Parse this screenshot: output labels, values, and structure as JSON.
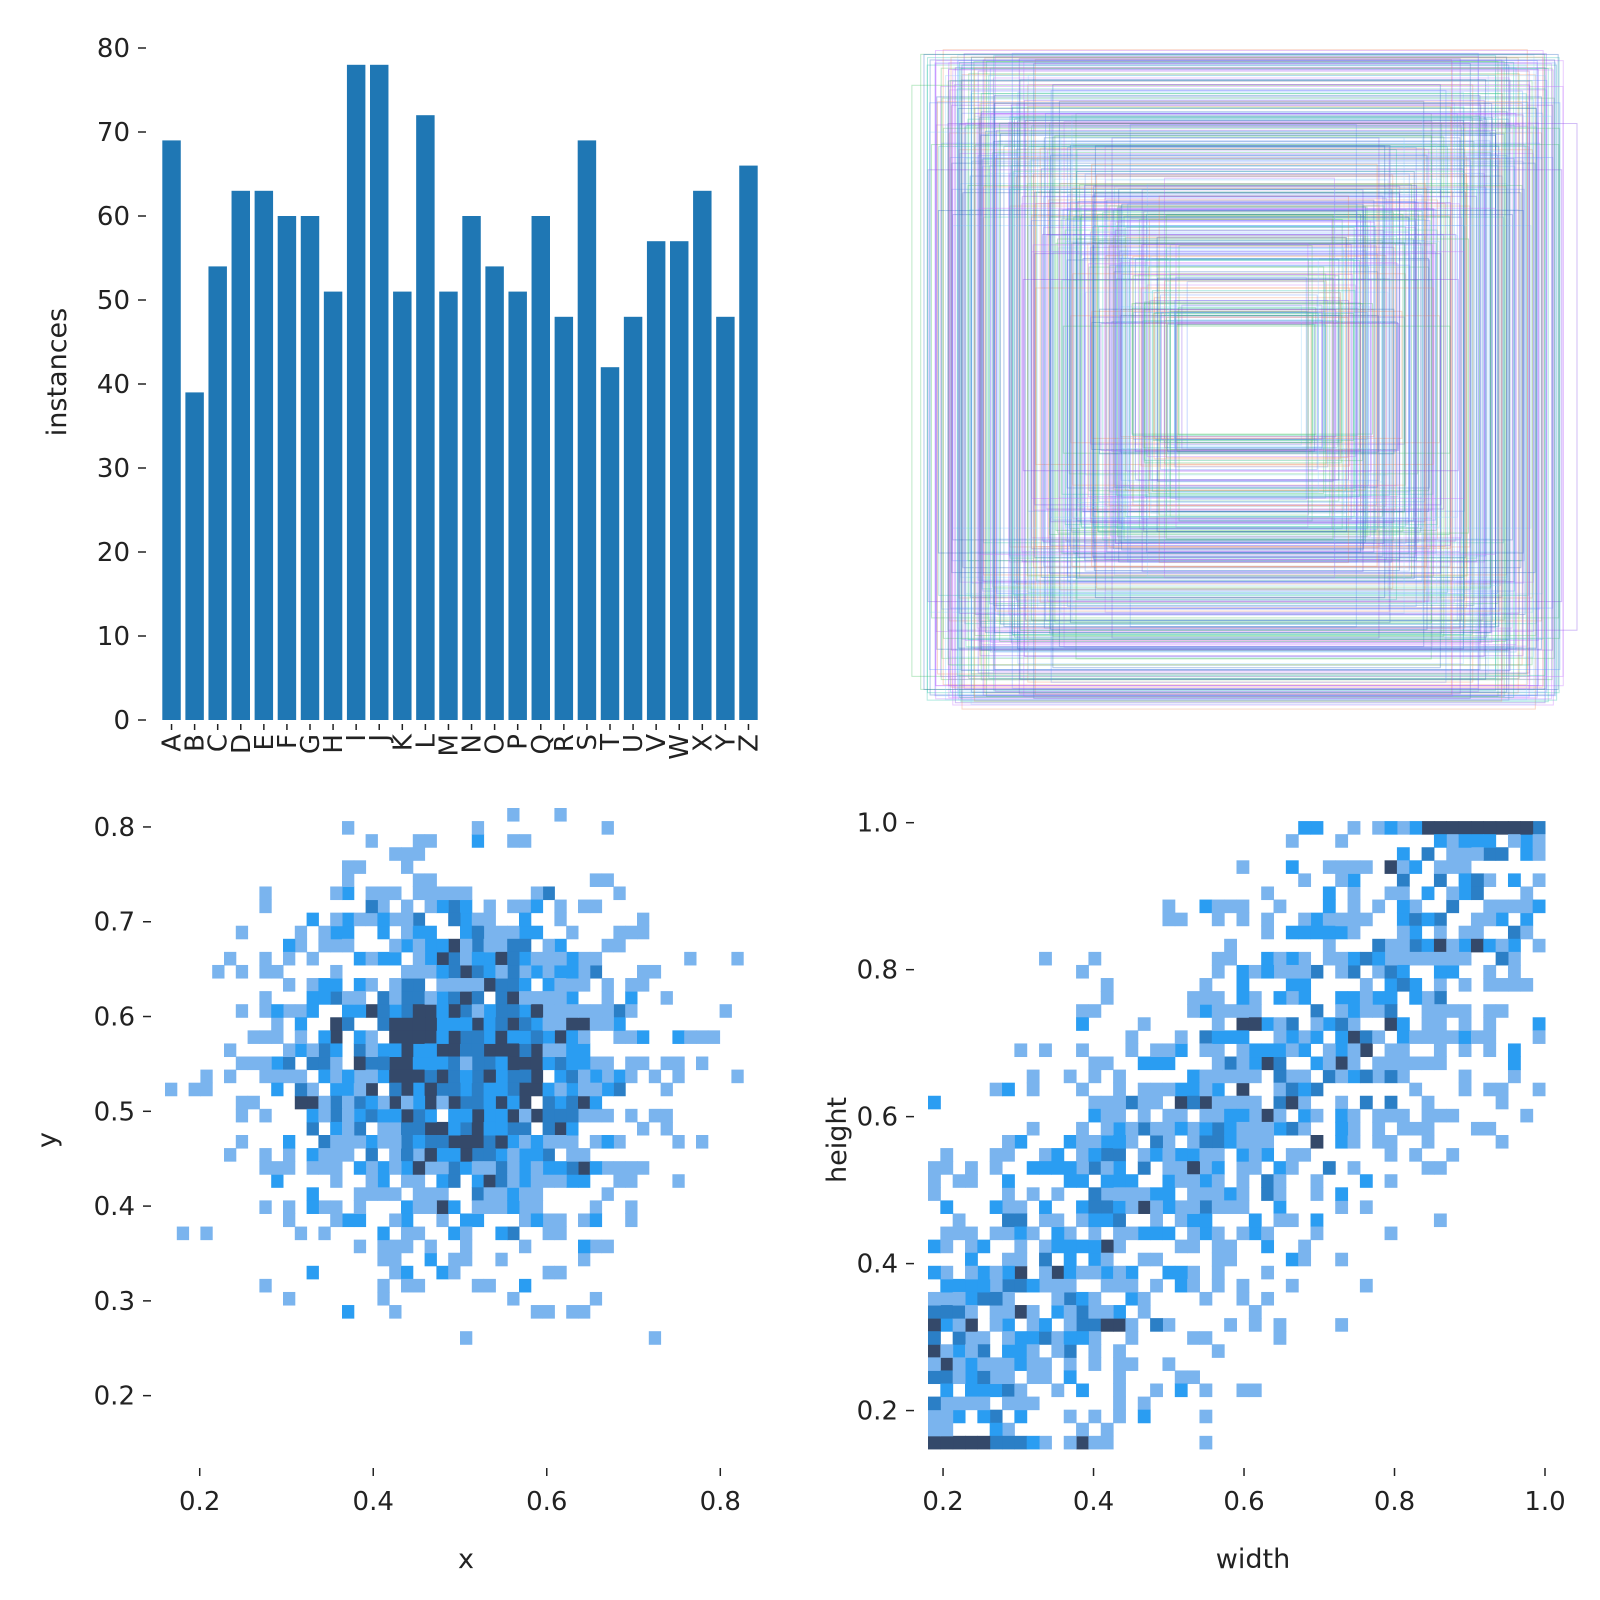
{
  "colors": {
    "bar": "#1f77b4",
    "hist_light": "#7ab4ee",
    "hist_mid": "#2a9df2",
    "hist_dark": "#2b7fc6",
    "hist_darkest": "#34496a",
    "tick": "#222222"
  },
  "chart_data": [
    {
      "id": "class-counts",
      "type": "bar",
      "categories": [
        "A",
        "B",
        "C",
        "D",
        "E",
        "F",
        "G",
        "H",
        "I",
        "J",
        "K",
        "L",
        "M",
        "N",
        "O",
        "P",
        "Q",
        "R",
        "S",
        "T",
        "U",
        "V",
        "W",
        "X",
        "Y",
        "Z"
      ],
      "values": [
        69,
        39,
        54,
        63,
        63,
        60,
        60,
        51,
        78,
        78,
        51,
        72,
        51,
        60,
        54,
        51,
        60,
        48,
        69,
        42,
        48,
        57,
        57,
        63,
        48,
        66
      ],
      "ylabel": "instances",
      "xlabel": "",
      "ylim": [
        0,
        80
      ],
      "yticks": [
        0,
        10,
        20,
        30,
        40,
        50,
        60,
        70,
        80
      ],
      "grid": false
    },
    {
      "id": "box-overlay",
      "type": "other",
      "description_colors": [
        "#5b8cff",
        "#29c4a9",
        "#7b3fe4",
        "#f08a5d",
        "#8fd3ff",
        "#3fbf5f",
        "#c06bff",
        "#1f5fbf"
      ],
      "rects_count": 400,
      "grid": false
    },
    {
      "id": "xy-hist",
      "type": "heatmap",
      "xlabel": "x",
      "ylabel": "y",
      "xlim": [
        0.16,
        0.84
      ],
      "ylim": [
        0.13,
        0.82
      ],
      "xticks": [
        "0.2",
        "0.4",
        "0.6",
        "0.8"
      ],
      "yticks": [
        "0.2",
        "0.3",
        "0.4",
        "0.5",
        "0.6",
        "0.7",
        "0.8"
      ],
      "center": [
        0.5,
        0.55
      ],
      "spread": [
        0.11,
        0.1
      ],
      "bins": 50,
      "grid": false
    },
    {
      "id": "wh-hist",
      "type": "heatmap",
      "xlabel": "width",
      "ylabel": "height",
      "xlim": [
        0.18,
        1.0
      ],
      "ylim": [
        0.13,
        1.02
      ],
      "xticks": [
        "0.2",
        "0.4",
        "0.6",
        "0.8",
        "1.0"
      ],
      "yticks": [
        "0.2",
        "0.4",
        "0.6",
        "0.8",
        "1.0"
      ],
      "correlation": 0.75,
      "bins": 50,
      "grid": false
    }
  ]
}
